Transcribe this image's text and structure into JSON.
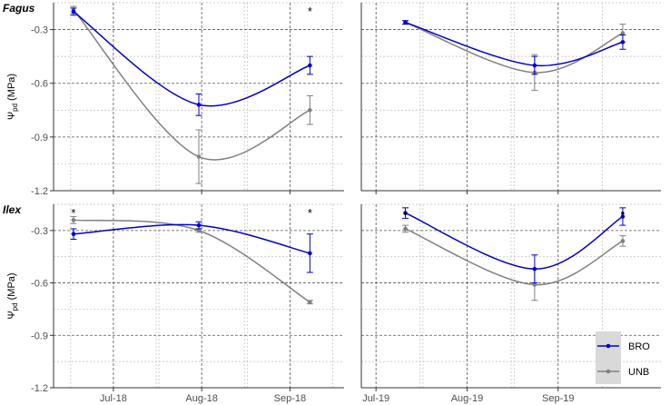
{
  "chart_data": {
    "type": "line",
    "ylabel": "Ψpd (MPa)",
    "ylabel_main": "Ψ",
    "ylabel_sub": "pd",
    "ylabel_unit": "(MPa)",
    "ylim": [
      -1.2,
      -0.15
    ],
    "yticks": [
      -1.2,
      -0.9,
      -0.6,
      -0.3
    ],
    "ytick_labels": [
      "-1.2",
      "-0.9",
      "-0.6",
      "-0.3"
    ],
    "grid": true,
    "legend": {
      "position": "bottom-right",
      "entries": [
        "BRO",
        "UNB"
      ]
    },
    "series_colors": {
      "BRO": "#0000cc",
      "UNB": "#808080"
    },
    "panels": [
      {
        "species": "Fagus",
        "year": "2018",
        "show_title": true,
        "xticks": [
          "2018-07-01",
          "2018-08-01",
          "2018-09-01"
        ],
        "xtick_labels": [
          "Jul-18",
          "Aug-18",
          "Sep-18"
        ],
        "xlim": [
          "2018-06-10",
          "2018-09-20"
        ],
        "series": [
          {
            "name": "BRO",
            "x": [
              "2018-06-17",
              "2018-07-31",
              "2018-09-08"
            ],
            "y": [
              -0.2,
              -0.72,
              -0.5
            ],
            "err": [
              0.02,
              0.06,
              0.05
            ]
          },
          {
            "name": "UNB",
            "x": [
              "2018-06-17",
              "2018-07-31",
              "2018-09-08"
            ],
            "y": [
              -0.19,
              -1.01,
              -0.75
            ],
            "err": [
              0.02,
              0.15,
              0.08
            ]
          }
        ],
        "significance": [
          {
            "x": "2018-09-08",
            "label": "*"
          }
        ]
      },
      {
        "species": "Fagus",
        "year": "2019",
        "show_title": false,
        "xticks": [
          "2019-07-01",
          "2019-08-01",
          "2019-09-01"
        ],
        "xtick_labels": [
          "Jul-19",
          "Aug-19",
          "Sep-19"
        ],
        "xlim": [
          "2019-06-26",
          "2019-10-06"
        ],
        "series": [
          {
            "name": "BRO",
            "x": [
              "2019-07-11",
              "2019-08-24",
              "2019-09-23"
            ],
            "y": [
              -0.26,
              -0.5,
              -0.37
            ],
            "err": [
              0.01,
              0.05,
              0.04
            ]
          },
          {
            "name": "UNB",
            "x": [
              "2019-07-11",
              "2019-08-24",
              "2019-09-23"
            ],
            "y": [
              -0.26,
              -0.54,
              -0.32
            ],
            "err": [
              0.01,
              0.1,
              0.05
            ]
          }
        ],
        "significance": []
      },
      {
        "species": "Ilex",
        "year": "2018",
        "show_title": true,
        "xticks": [
          "2018-07-01",
          "2018-08-01",
          "2018-09-01"
        ],
        "xtick_labels": [
          "Jul-18",
          "Aug-18",
          "Sep-18"
        ],
        "xlim": [
          "2018-06-10",
          "2018-09-20"
        ],
        "series": [
          {
            "name": "BRO",
            "x": [
              "2018-06-17",
              "2018-07-31",
              "2018-09-08"
            ],
            "y": [
              -0.32,
              -0.27,
              -0.43
            ],
            "err": [
              0.03,
              0.02,
              0.11
            ]
          },
          {
            "name": "UNB",
            "x": [
              "2018-06-17",
              "2018-07-31",
              "2018-09-08"
            ],
            "y": [
              -0.24,
              -0.3,
              -0.71
            ],
            "err": [
              0.02,
              0.01,
              0.01
            ]
          }
        ],
        "significance": [
          {
            "x": "2018-06-17",
            "label": "*"
          },
          {
            "x": "2018-09-08",
            "label": "*"
          }
        ]
      },
      {
        "species": "Ilex",
        "year": "2019",
        "show_title": false,
        "xticks": [
          "2019-07-01",
          "2019-08-01",
          "2019-09-01"
        ],
        "xtick_labels": [
          "Jul-19",
          "Aug-19",
          "Sep-19"
        ],
        "xlim": [
          "2019-06-26",
          "2019-10-06"
        ],
        "series": [
          {
            "name": "BRO",
            "x": [
              "2019-07-11",
              "2019-08-24",
              "2019-09-23"
            ],
            "y": [
              -0.2,
              -0.52,
              -0.22
            ],
            "err": [
              0.03,
              0.08,
              0.05
            ]
          },
          {
            "name": "UNB",
            "x": [
              "2019-07-11",
              "2019-08-24",
              "2019-09-23"
            ],
            "y": [
              -0.29,
              -0.61,
              -0.36
            ],
            "err": [
              0.02,
              0.09,
              0.03
            ]
          }
        ],
        "significance": [
          {
            "x": "2019-07-11",
            "label": "•"
          },
          {
            "x": "2019-09-23",
            "label": "•"
          }
        ]
      }
    ]
  }
}
